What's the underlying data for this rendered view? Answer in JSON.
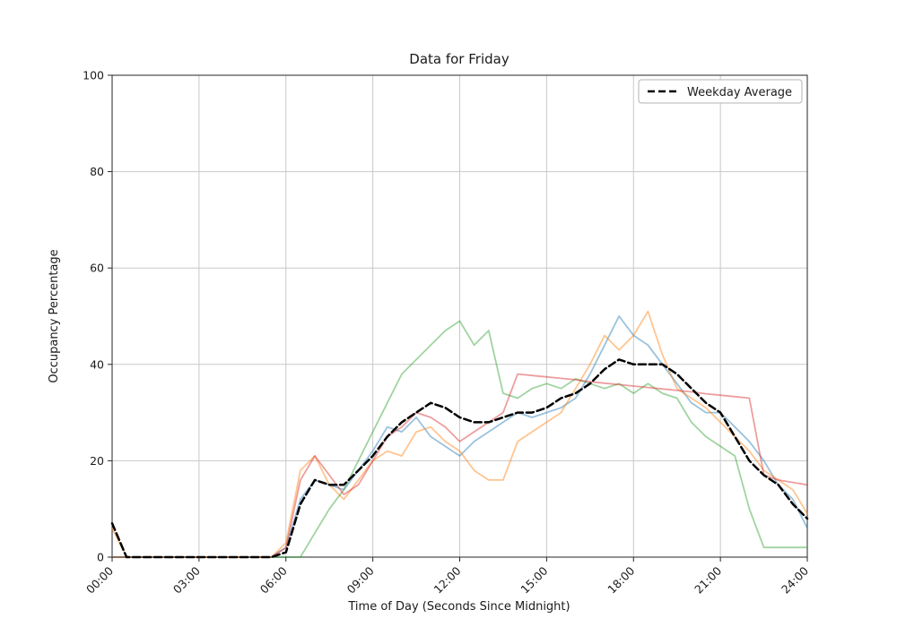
{
  "title": "Data for Friday",
  "axes": {
    "xlabel": "Time of Day (Seconds Since Midnight)",
    "ylabel": "Occupancy Percentage"
  },
  "legend": {
    "label": "Weekday Average"
  },
  "chart_data": {
    "type": "line",
    "title": "Data for Friday",
    "xlabel": "Time of Day (Seconds Since Midnight)",
    "ylabel": "Occupancy Percentage",
    "grid": true,
    "legend_position": "upper right",
    "ylim": [
      0,
      100
    ],
    "y_ticks": [
      0,
      20,
      40,
      60,
      80,
      100
    ],
    "x_tick_hours": [
      0,
      3,
      6,
      9,
      12,
      15,
      18,
      21,
      24
    ],
    "x_tick_labels": [
      "00:00",
      "03:00",
      "06:00",
      "09:00",
      "12:00",
      "15:00",
      "18:00",
      "21:00",
      "24:00"
    ],
    "x": [
      0,
      0.5,
      1,
      1.5,
      2,
      2.5,
      3,
      3.5,
      4,
      4.5,
      5,
      5.5,
      6,
      6.5,
      7,
      7.5,
      8,
      8.5,
      9,
      9.5,
      10,
      10.5,
      11,
      11.5,
      12,
      12.5,
      13,
      13.5,
      14,
      14.5,
      15,
      15.5,
      16,
      16.5,
      17,
      17.5,
      18,
      18.5,
      19,
      19.5,
      20,
      20.5,
      21,
      21.5,
      22,
      22.5,
      23,
      23.5,
      24
    ],
    "series": [
      {
        "name": "series-blue",
        "color": "#1f77b4",
        "alpha": 0.45,
        "width": 1.8,
        "dash": false,
        "values": [
          0,
          0,
          0,
          0,
          0,
          0,
          0,
          0,
          0,
          0,
          0,
          0,
          2,
          12,
          16,
          15,
          14,
          18,
          22,
          27,
          26,
          29,
          25,
          23,
          21,
          24,
          26,
          28,
          30,
          29,
          30,
          31,
          33,
          38,
          44,
          50,
          46,
          44,
          40,
          36,
          32,
          30,
          30,
          27,
          24,
          20,
          15,
          12,
          6
        ]
      },
      {
        "name": "series-orange",
        "color": "#ff7f0e",
        "alpha": 0.45,
        "width": 1.8,
        "dash": false,
        "values": [
          6,
          0,
          0,
          0,
          0,
          0,
          0,
          0,
          0,
          0,
          0,
          0,
          3,
          18,
          21,
          15,
          12,
          16,
          20,
          22,
          21,
          26,
          27,
          24,
          22,
          18,
          16,
          16,
          24,
          26,
          28,
          30,
          35,
          40,
          46,
          43,
          46,
          51,
          42,
          35,
          33,
          31,
          28,
          25,
          22,
          18,
          16,
          14,
          9
        ]
      },
      {
        "name": "series-green",
        "color": "#2ca02c",
        "alpha": 0.45,
        "width": 1.8,
        "dash": false,
        "values": [
          0,
          0,
          0,
          0,
          0,
          0,
          0,
          0,
          0,
          0,
          0,
          0,
          0,
          0,
          5,
          10,
          14,
          20,
          26,
          32,
          38,
          41,
          44,
          47,
          49,
          44,
          47,
          34,
          33,
          35,
          36,
          35,
          37,
          36,
          35,
          36,
          34,
          36,
          34,
          33,
          28,
          25,
          23,
          21,
          10,
          2,
          2,
          2,
          2
        ]
      },
      {
        "name": "series-red",
        "color": "#d62728",
        "alpha": 0.45,
        "width": 1.8,
        "dash": false,
        "values": [
          0,
          0,
          0,
          0,
          0,
          0,
          0,
          0,
          0,
          0,
          0,
          0,
          2,
          16,
          21,
          17,
          13,
          15,
          20,
          25,
          27,
          30,
          29,
          27,
          24,
          26,
          28,
          30,
          38,
          37.7,
          37.4,
          37.1,
          36.8,
          36.4,
          36.1,
          35.8,
          35.5,
          35.2,
          34.9,
          34.6,
          34.3,
          33.9,
          33.6,
          33.3,
          33,
          17,
          16,
          15.5,
          15
        ]
      },
      {
        "name": "weekday-average",
        "label": "Weekday Average",
        "color": "#000000",
        "alpha": 1,
        "width": 2.5,
        "dash": true,
        "values": [
          7,
          0,
          0,
          0,
          0,
          0,
          0,
          0,
          0,
          0,
          0,
          0,
          1,
          11,
          16,
          15,
          15,
          18,
          21,
          25,
          28,
          30,
          32,
          31,
          29,
          28,
          28,
          29,
          30,
          30,
          31,
          33,
          34,
          36,
          39,
          41,
          40,
          40,
          40,
          38,
          35,
          32,
          30,
          25,
          20,
          17,
          15,
          11,
          8
        ]
      }
    ]
  }
}
